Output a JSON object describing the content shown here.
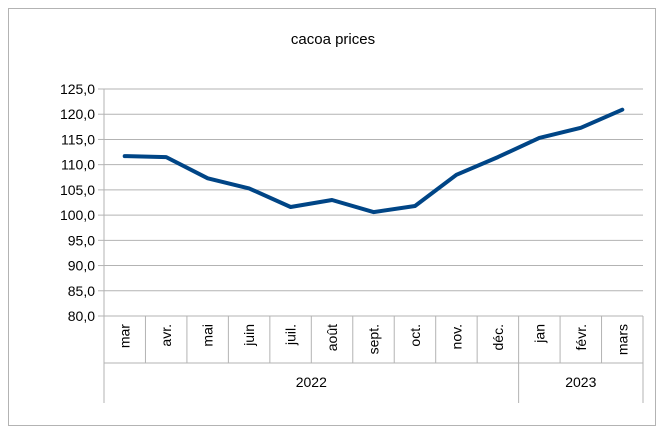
{
  "chart_data": {
    "type": "line",
    "title": "cacoa prices",
    "xlabel": "",
    "ylabel": "",
    "categories": [
      "mar",
      "avr.",
      "mai",
      "juin",
      "juil.",
      "août",
      "sept.",
      "oct.",
      "nov.",
      "déc.",
      "jan",
      "févr.",
      "mars"
    ],
    "groups": [
      {
        "label": "2022",
        "start": 0,
        "end": 9
      },
      {
        "label": "2023",
        "start": 10,
        "end": 12
      }
    ],
    "series": [
      {
        "values": [
          111.7,
          111.5,
          107.3,
          105.3,
          101.6,
          103.0,
          100.6,
          101.8,
          108.0,
          111.5,
          115.3,
          117.3,
          120.9
        ],
        "color": "#004586"
      }
    ],
    "ylim": [
      80,
      125
    ],
    "ystep": 5,
    "ytick_labels": [
      "80,0",
      "85,0",
      "90,0",
      "95,0",
      "100,0",
      "105,0",
      "110,0",
      "115,0",
      "120,0",
      "125,0"
    ],
    "grid": true,
    "legend": "none"
  }
}
